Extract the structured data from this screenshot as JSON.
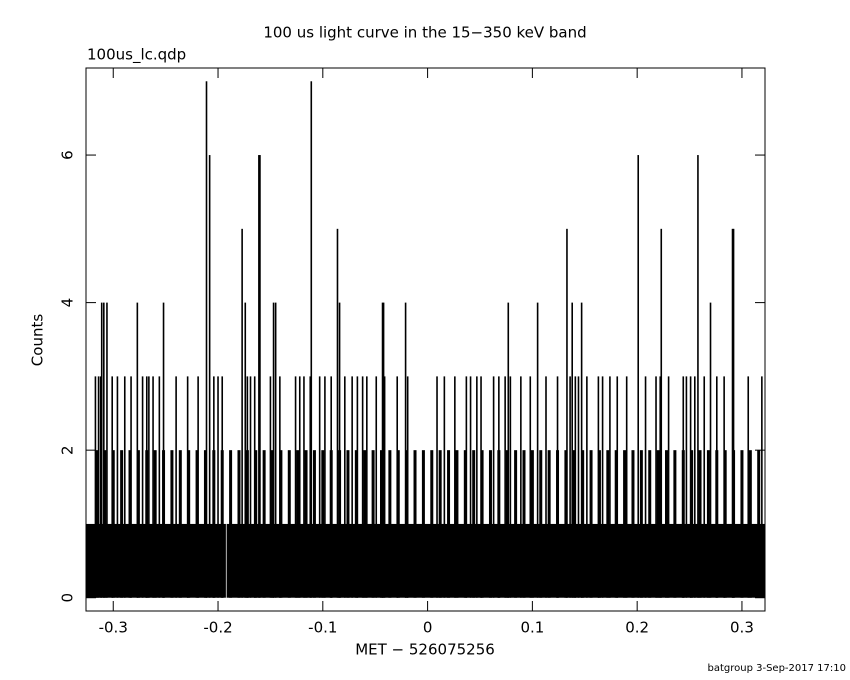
{
  "chart_data": {
    "type": "histogram",
    "title": "100 us light curve in the 15−350 keV band",
    "subtitle": "100us_lc.qdp",
    "x_label": "MET − 526075256",
    "y_label": "Counts",
    "footer": "batgroup  3-Sep-2017 17:10",
    "color": "#000000",
    "xlim": [
      -0.326,
      0.322
    ],
    "ylim": [
      -0.18,
      7.18
    ],
    "xticks": [
      -0.3,
      -0.2,
      -0.1,
      0,
      0.1,
      0.2,
      0.3
    ],
    "yticks": [
      0,
      2,
      4,
      6
    ],
    "bins": [
      -0.326,
      -0.1925,
      -0.1918,
      0.322
    ],
    "counts": [
      1,
      0,
      1
    ],
    "series": [
      {
        "x": [
          -0.211,
          -0.111,
          -0.208,
          -0.161,
          -0.16,
          0.201,
          0.258,
          -0.177,
          -0.086,
          0.133,
          0.223,
          0.291,
          0.292,
          -0.311,
          -0.309,
          -0.306,
          -0.277,
          -0.252,
          -0.174,
          -0.147,
          -0.145,
          -0.084,
          -0.043,
          -0.042,
          -0.021,
          0.077,
          0.105,
          0.138,
          0.147,
          0.27,
          -0.317,
          -0.314,
          -0.312,
          -0.301,
          -0.296,
          -0.289,
          -0.283,
          -0.272,
          -0.268,
          -0.266,
          -0.262,
          -0.256,
          -0.24,
          -0.229,
          -0.219,
          -0.204,
          -0.2,
          -0.196,
          -0.172,
          -0.169,
          -0.165,
          -0.15,
          -0.141,
          -0.126,
          -0.122,
          -0.118,
          -0.112,
          -0.103,
          -0.098,
          -0.092,
          -0.079,
          -0.072,
          -0.067,
          -0.062,
          -0.058,
          -0.049,
          -0.041,
          -0.029,
          -0.019,
          0.009,
          0.016,
          0.026,
          0.037,
          0.041,
          0.047,
          0.051,
          0.063,
          0.068,
          0.074,
          0.079,
          0.089,
          0.098,
          0.113,
          0.124,
          0.136,
          0.141,
          0.144,
          0.152,
          0.163,
          0.167,
          0.174,
          0.181,
          0.19,
          0.208,
          0.218,
          0.222,
          0.23,
          0.244,
          0.247,
          0.251,
          0.255,
          0.264,
          0.276,
          0.283,
          0.306,
          0.319
        ],
        "values": [
          7,
          7,
          6,
          6,
          6,
          6,
          6,
          5,
          5,
          5,
          5,
          5,
          5,
          4,
          4,
          4,
          4,
          4,
          4,
          4,
          4,
          4,
          4,
          4,
          4,
          4,
          4,
          4,
          4,
          4,
          3,
          3,
          3,
          3,
          3,
          3,
          3,
          3,
          3,
          3,
          3,
          3,
          3,
          3,
          3,
          3,
          3,
          3,
          3,
          3,
          3,
          3,
          3,
          3,
          3,
          3,
          3,
          3,
          3,
          3,
          3,
          3,
          3,
          3,
          3,
          3,
          3,
          3,
          3,
          3,
          3,
          3,
          3,
          3,
          3,
          3,
          3,
          3,
          3,
          3,
          3,
          3,
          3,
          3,
          3,
          3,
          3,
          3,
          3,
          3,
          3,
          3,
          3,
          3,
          3,
          3,
          3,
          3,
          3,
          3,
          3,
          3,
          3,
          3,
          3,
          3
        ]
      },
      {
        "x": [
          -0.316,
          -0.308,
          -0.3,
          -0.292,
          -0.284,
          -0.276,
          -0.268,
          -0.26,
          -0.252,
          -0.244,
          -0.236,
          -0.228,
          -0.22,
          -0.212,
          -0.204,
          -0.196,
          -0.188,
          -0.18,
          -0.172,
          -0.164,
          -0.156,
          -0.148,
          -0.14,
          -0.132,
          -0.124,
          -0.116,
          -0.108,
          -0.1,
          -0.092,
          -0.084,
          -0.076,
          -0.068,
          -0.06,
          -0.052,
          -0.044,
          -0.036,
          -0.028,
          -0.02,
          -0.012,
          -0.004,
          0.004,
          0.012,
          0.02,
          0.028,
          0.036,
          0.044,
          0.052,
          0.06,
          0.068,
          0.076,
          0.084,
          0.092,
          0.1,
          0.108,
          0.116,
          0.124,
          0.132,
          0.14,
          0.148,
          0.156,
          0.164,
          0.172,
          0.18,
          0.188,
          0.196,
          0.204,
          0.212,
          0.22,
          0.228,
          0.236,
          0.244,
          0.252,
          0.26,
          0.268,
          0.276,
          0.284,
          0.292,
          0.3,
          0.308,
          0.316
        ],
        "values": [
          2,
          2,
          2,
          2,
          2,
          2,
          2,
          2,
          2,
          2,
          2,
          2,
          2,
          2,
          2,
          2,
          2,
          2,
          2,
          2,
          2,
          2,
          2,
          2,
          2,
          2,
          2,
          2,
          2,
          2,
          2,
          2,
          2,
          2,
          2,
          2,
          2,
          2,
          2,
          2,
          2,
          2,
          2,
          2,
          2,
          2,
          2,
          2,
          2,
          2,
          2,
          2,
          2,
          2,
          2,
          2,
          2,
          2,
          2,
          2,
          2,
          2,
          2,
          2,
          2,
          2,
          2,
          2,
          2,
          2,
          2,
          2,
          2,
          2,
          2,
          2,
          2,
          2,
          2,
          2
        ]
      }
    ]
  }
}
